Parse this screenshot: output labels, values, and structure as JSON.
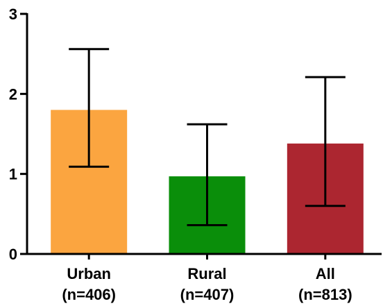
{
  "chart_data": {
    "type": "bar",
    "title": "",
    "xlabel": "",
    "ylabel": "",
    "ylim": [
      0,
      3
    ],
    "yticks": [
      0,
      1,
      2,
      3
    ],
    "grid": false,
    "categories": [
      {
        "name": "Urban",
        "sub": "(n=406)"
      },
      {
        "name": "Rural",
        "sub": "(n=407)"
      },
      {
        "name": "All",
        "sub": "(n=813)"
      }
    ],
    "values": [
      1.8,
      0.97,
      1.38
    ],
    "error_low": [
      1.09,
      0.36,
      0.6
    ],
    "error_high": [
      2.56,
      1.62,
      2.21
    ],
    "colors": [
      "#FBA540",
      "#0A8E0A",
      "#AC2630"
    ]
  }
}
